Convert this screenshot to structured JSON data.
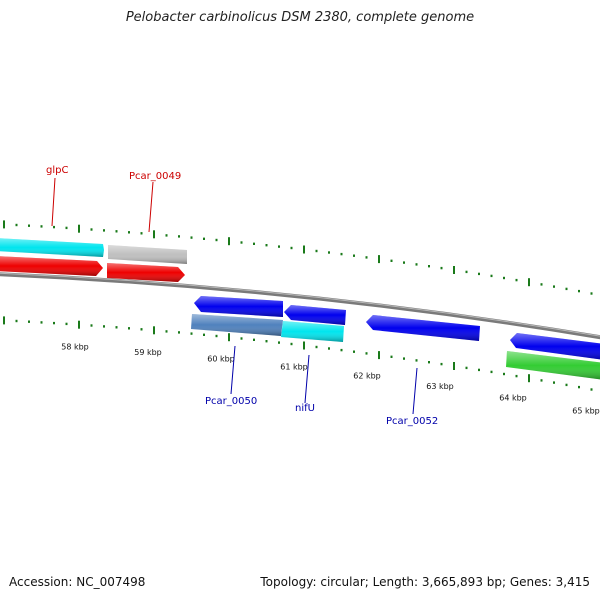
{
  "title": "Pelobacter carbinolicus DSM 2380, complete genome",
  "footer": {
    "accession": "Accession: NC_007498",
    "summary": "Topology: circular; Length: 3,665,893 bp; Genes: 3,415"
  },
  "colors": {
    "backbone": "#7a7a7a",
    "tick": "#1a7a1a",
    "label_red": "#cc0000",
    "label_blue": "#0000aa",
    "cyan": "#00e5ee",
    "red": "#ee0000",
    "gray": "#bfbfbf",
    "blue": "#0000ee",
    "steelblue": "#4f81bd",
    "green": "#33cc33"
  },
  "scale": {
    "labels": [
      "58 kbp",
      "59 kbp",
      "60 kbp",
      "61 kbp",
      "62 kbp",
      "63 kbp",
      "64 kbp",
      "65 kbp"
    ]
  },
  "gene_labels": [
    {
      "text": "glpC",
      "color": "red"
    },
    {
      "text": "Pcar_0049",
      "color": "red"
    },
    {
      "text": "Pcar_0050",
      "color": "blue"
    },
    {
      "text": "nifU",
      "color": "blue"
    },
    {
      "text": "Pcar_0052",
      "color": "blue"
    }
  ]
}
